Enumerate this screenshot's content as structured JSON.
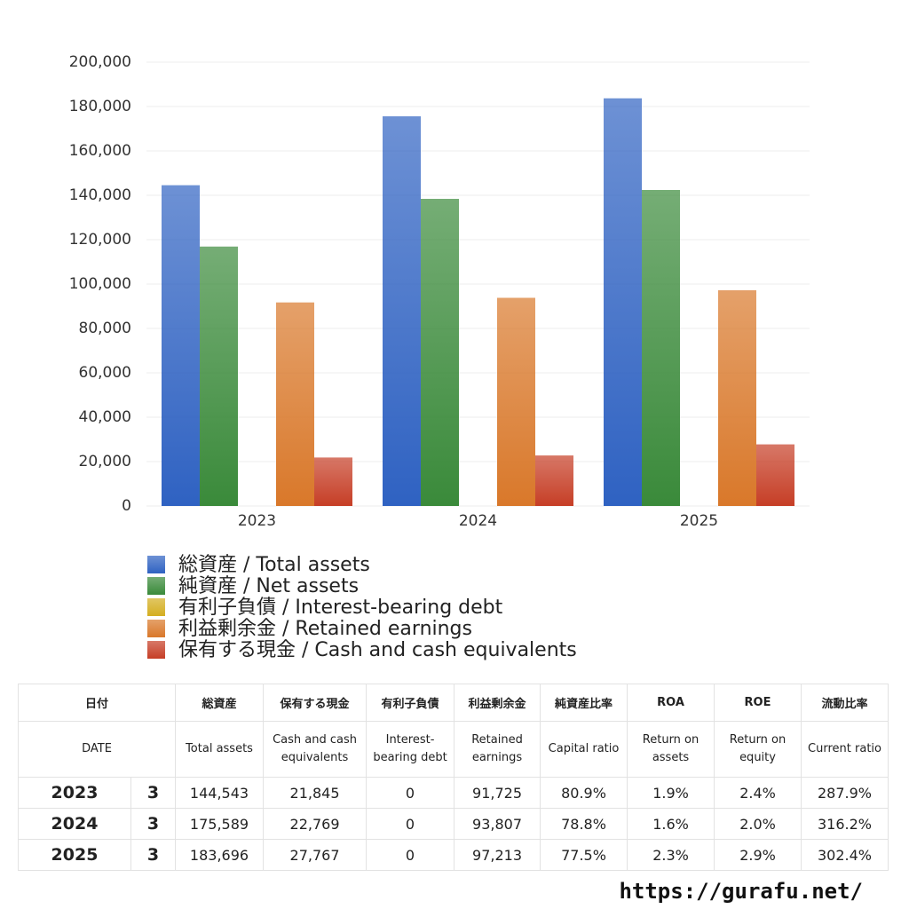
{
  "chart_data": {
    "type": "bar",
    "categories": [
      "2023",
      "2024",
      "2025"
    ],
    "series": [
      {
        "name": "総資産 / Total assets",
        "color": "#2f62c2",
        "values": [
          144543,
          175589,
          183696
        ]
      },
      {
        "name": "純資産 / Net assets",
        "color": "#3a8a3a",
        "values": [
          116900,
          138400,
          142400
        ]
      },
      {
        "name": "有利子負債 / Interest-bearing debt",
        "color": "#d4ae20",
        "values": [
          0,
          0,
          0
        ]
      },
      {
        "name": "利益剰余金 / Retained earnings",
        "color": "#d9782a",
        "values": [
          91725,
          93807,
          97213
        ]
      },
      {
        "name": "保有する現金 /  Cash and cash equivalents",
        "color": "#c63e26",
        "values": [
          21845,
          22769,
          27767
        ]
      }
    ],
    "ylim": [
      0,
      200000
    ],
    "yticks": [
      0,
      {
        "value": 20000,
        "label": "20,000"
      },
      {
        "value": 40000,
        "label": "40,000"
      },
      {
        "value": 60000,
        "label": "60,000"
      },
      {
        "value": 80000,
        "label": "80,000"
      },
      {
        "value": 100000,
        "label": "100,000"
      },
      {
        "value": 120000,
        "label": "120,000"
      },
      {
        "value": 140000,
        "label": "140,000"
      },
      {
        "value": 160000,
        "label": "160,000"
      },
      {
        "value": 180000,
        "label": "180,000"
      },
      {
        "value": 200000,
        "label": "200,000"
      }
    ],
    "grid": true
  },
  "table": {
    "columns": [
      {
        "ja": "日付",
        "en": "DATE"
      },
      {
        "ja": "総資産",
        "en": "Total assets"
      },
      {
        "ja": "保有する現金",
        "en": "Cash and cash equivalents"
      },
      {
        "ja": "有利子負債",
        "en": "Interest-bearing debt"
      },
      {
        "ja": "利益剰余金",
        "en": "Retained earnings"
      },
      {
        "ja": "純資産比率",
        "en": "Capital ratio"
      },
      {
        "ja": "ROA",
        "en": "Return on assets"
      },
      {
        "ja": "ROE",
        "en": "Return on equity"
      },
      {
        "ja": "流動比率",
        "en": "Current ratio"
      }
    ],
    "rows": [
      [
        "2023",
        "3",
        "144,543",
        "21,845",
        "0",
        "91,725",
        "80.9%",
        "1.9%",
        "2.4%",
        "287.9%"
      ],
      [
        "2024",
        "3",
        "175,589",
        "22,769",
        "0",
        "93,807",
        "78.8%",
        "1.6%",
        "2.0%",
        "316.2%"
      ],
      [
        "2025",
        "3",
        "183,696",
        "27,767",
        "0",
        "97,213",
        "77.5%",
        "2.3%",
        "2.9%",
        "302.4%"
      ]
    ]
  },
  "footer": "https://gurafu.net/"
}
